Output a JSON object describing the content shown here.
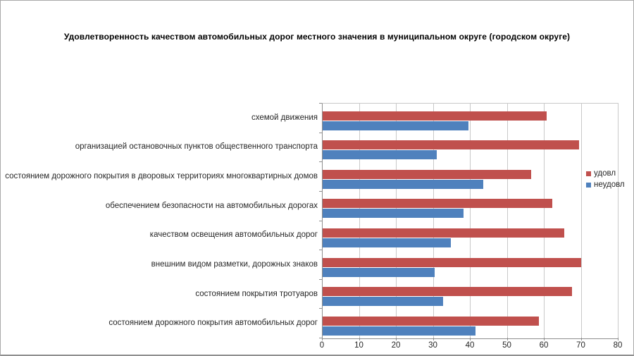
{
  "chart": {
    "title": "Удовлетворенность качеством автомобильных дорог местного значения в муниципальном округе (городском округе)"
  },
  "legend": {
    "items": [
      {
        "label": "удовл",
        "color": "#C0504D"
      },
      {
        "label": "неудовл",
        "color": "#4F81BD"
      }
    ]
  },
  "chart_data": {
    "type": "bar",
    "orientation": "horizontal",
    "title": "Удовлетворенность качеством автомобильных дорог местного значения в муниципальном округе (городском округе)",
    "categories": [
      "схемой движения",
      "организацией остановочных пунктов общественного транспорта",
      "состоянием дорожного покрытия в дворовых территориях многоквартирных домов",
      "обеспечением безопасности на автомобильных дорогах",
      "качеством освещения автомобильных дорог",
      "внешним видом разметки, дорожных знаков",
      "состоянием покрытия тротуаров",
      "состоянием дорожного покрытия автомобильных дорог"
    ],
    "series": [
      {
        "name": "удовл",
        "color": "#C0504D",
        "values": [
          60.5,
          69.3,
          56.4,
          62,
          65.4,
          69.9,
          67.4,
          58.4
        ]
      },
      {
        "name": "неудовл",
        "color": "#4F81BD",
        "values": [
          39.4,
          30.8,
          43.5,
          38,
          34.6,
          30.2,
          32.5,
          41.4
        ]
      }
    ],
    "xlabel": "",
    "ylabel": "",
    "xlim": [
      0,
      80
    ],
    "x_ticks": [
      0,
      10,
      20,
      30,
      40,
      50,
      60,
      70,
      80
    ],
    "grid": "vertical",
    "legend_position": "right",
    "colors": {
      "grid": "#c9c9c9",
      "axis": "#8e8e8e",
      "text": "#262626"
    }
  }
}
